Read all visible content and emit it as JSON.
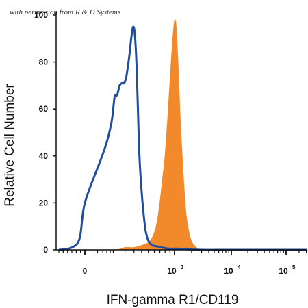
{
  "chart_data": {
    "type": "area",
    "permission_note": "with permission from R & D Systems",
    "xlabel": "IFN-gamma R1/CD119",
    "ylabel": "Relative Cell Number",
    "yticks": [
      "0",
      "20",
      "40",
      "60",
      "80",
      "100"
    ],
    "xticks": [
      {
        "base": "0",
        "exp": ""
      },
      {
        "base": "10",
        "exp": "3"
      },
      {
        "base": "10",
        "exp": "4"
      },
      {
        "base": "10",
        "exp": "5"
      }
    ],
    "ylim": [
      0,
      100
    ],
    "xscale": "biexponential",
    "series": [
      {
        "color": "#1f4e9c",
        "style": "line",
        "x": [
          -300,
          -150,
          -60,
          0,
          30,
          60,
          90,
          110,
          130,
          150,
          170,
          190,
          210,
          230,
          250,
          270,
          290,
          310,
          330,
          350,
          370,
          400,
          430,
          460,
          500,
          560,
          640,
          740,
          880,
          1100,
          1500,
          3000,
          10000,
          100000,
          300000
        ],
        "y": [
          0,
          1,
          5,
          20,
          38,
          46,
          55,
          65,
          66,
          70,
          71,
          71,
          73,
          78,
          84,
          91,
          95,
          92,
          80,
          60,
          40,
          25,
          15,
          8,
          4,
          2,
          1.5,
          1,
          0.5,
          0.5,
          0.3,
          0,
          0,
          0,
          0
        ]
      },
      {
        "color": "#f28a2c",
        "style": "filled",
        "x": [
          -300,
          100,
          200,
          300,
          420,
          500,
          560,
          610,
          650,
          700,
          750,
          800,
          860,
          920,
          990,
          1060,
          1150,
          1250,
          1400,
          1600,
          1900,
          2300,
          3000,
          10000,
          100000,
          300000
        ],
        "y": [
          0,
          0,
          1,
          1,
          2,
          3,
          5,
          8,
          12,
          20,
          30,
          40,
          58,
          78,
          96,
          96,
          80,
          58,
          35,
          15,
          5,
          1.5,
          0,
          0,
          0,
          0
        ]
      }
    ]
  }
}
